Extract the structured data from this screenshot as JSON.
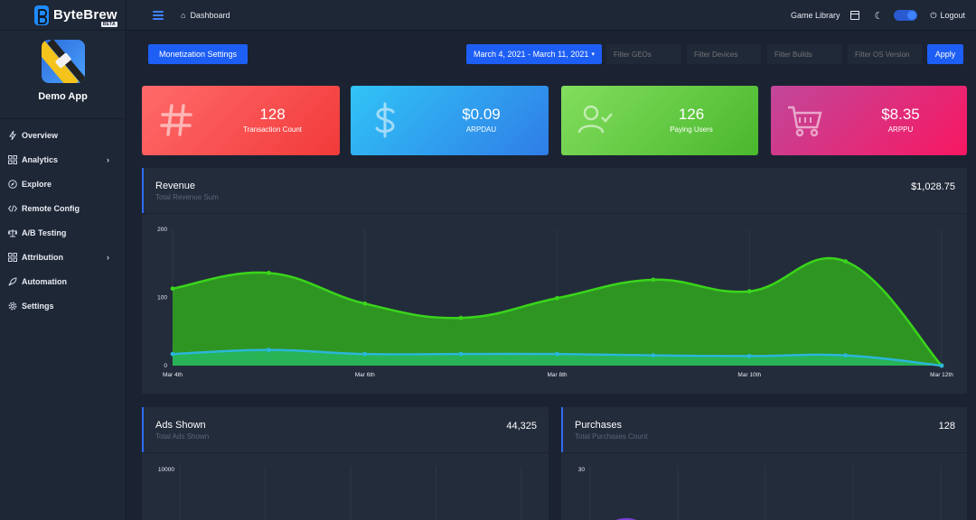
{
  "brand": {
    "name": "ByteBrew",
    "badge": "BETA"
  },
  "app": {
    "name": "Demo App"
  },
  "sidebar": {
    "items": [
      {
        "label": "Overview",
        "icon": "bolt-icon"
      },
      {
        "label": "Analytics",
        "icon": "grid-icon",
        "chevron": true
      },
      {
        "label": "Explore",
        "icon": "compass-icon"
      },
      {
        "label": "Remote Config",
        "icon": "code-icon"
      },
      {
        "label": "A/B Testing",
        "icon": "scale-icon"
      },
      {
        "label": "Attribution",
        "icon": "grid-icon",
        "chevron": true
      },
      {
        "label": "Automation",
        "icon": "rocket-icon"
      },
      {
        "label": "Settings",
        "icon": "gear-icon"
      }
    ]
  },
  "topbar": {
    "breadcrumb": "Dashboard",
    "game_library": "Game Library",
    "logout": "Logout"
  },
  "filters": {
    "monetization_button": "Monetization Settings",
    "date_range": "March 4, 2021 - March 11, 2021",
    "geos_placeholder": "Filter GEOs",
    "devices_placeholder": "Filter Devices",
    "builds_placeholder": "Filter Builds",
    "os_placeholder": "Filter OS Version",
    "apply": "Apply"
  },
  "kpis": [
    {
      "value": "128",
      "label": "Transaction Count",
      "icon": "hash-icon",
      "colors": [
        "#ff6a6a",
        "#f23a3a"
      ]
    },
    {
      "value": "$0.09",
      "label": "ARPDAU",
      "icon": "dollar-icon",
      "colors": [
        "#31c4f6",
        "#2f7de7"
      ]
    },
    {
      "value": "126",
      "label": "Paying Users",
      "icon": "user-check-icon",
      "colors": [
        "#82de5e",
        "#4ab72d"
      ]
    },
    {
      "value": "$8.35",
      "label": "ARPPU",
      "icon": "cart-icon",
      "colors": [
        "#c1479a",
        "#f81762"
      ]
    }
  ],
  "revenue": {
    "title": "Revenue",
    "subtitle": "Total Revenue Sum",
    "total": "$1,028.75"
  },
  "ads": {
    "title": "Ads Shown",
    "subtitle": "Total Ads Shown",
    "total": "44,325"
  },
  "purchases": {
    "title": "Purchases",
    "subtitle": "Total Purchases Count",
    "total": "128"
  },
  "chart_data": [
    {
      "type": "area",
      "x": [
        "Mar 4th",
        "Mar 5th",
        "Mar 6th",
        "Mar 7th",
        "Mar 8th",
        "Mar 9th",
        "Mar 10th",
        "Mar 11th",
        "Mar 12th"
      ],
      "x_tick_labels": [
        "Mar 4th",
        "Mar 6th",
        "Mar 8th",
        "Mar 10th",
        "Mar 12th"
      ],
      "y_tick_labels": [
        "0",
        "100",
        "200"
      ],
      "ylim": [
        0,
        200
      ],
      "series": [
        {
          "values": [
            113,
            136,
            91,
            70,
            99,
            126,
            109,
            153,
            0
          ],
          "color": "#3ad51b",
          "fill": "#2f9b22"
        },
        {
          "values": [
            17,
            23,
            17,
            17,
            17,
            15,
            14,
            15,
            0
          ],
          "color": "#2bb6d9",
          "fill": "#27b45a"
        }
      ],
      "grid": true
    },
    {
      "type": "bar",
      "y_tick_labels": [
        "10000"
      ],
      "ylim": [
        0,
        10000
      ]
    },
    {
      "type": "bar",
      "y_tick_labels": [
        "30"
      ],
      "ylim": [
        0,
        30
      ]
    }
  ]
}
